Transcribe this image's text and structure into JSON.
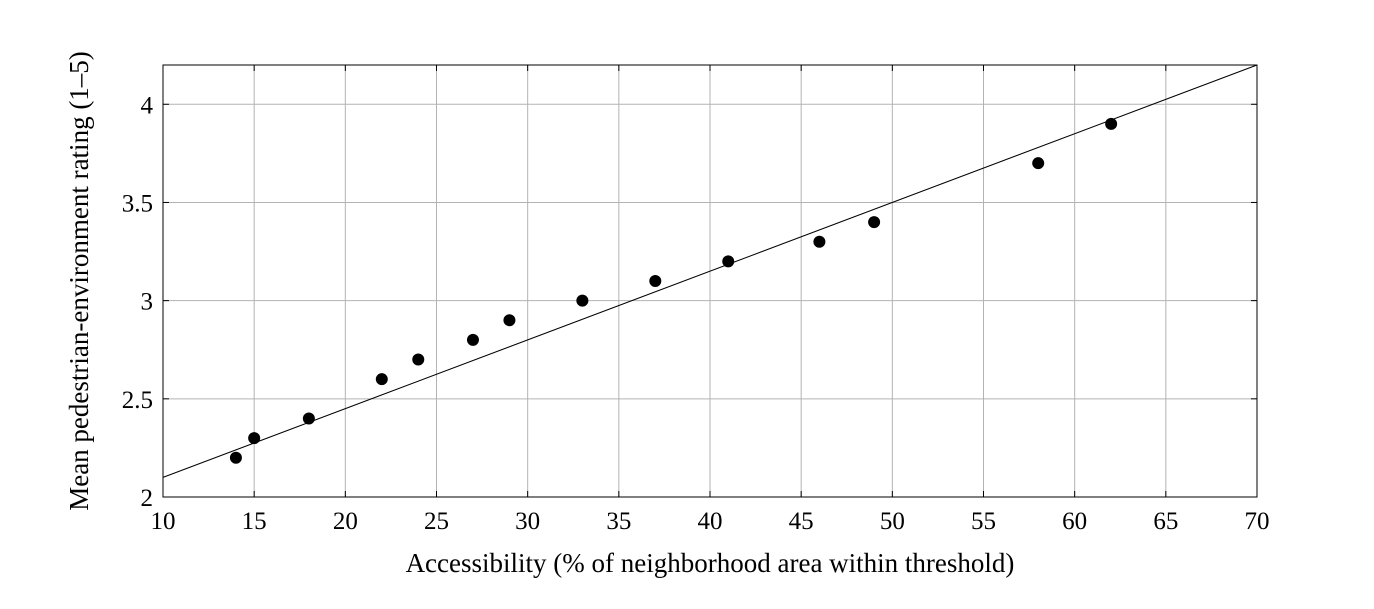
{
  "chart_data": {
    "type": "scatter",
    "title": "",
    "xlabel": "Accessibility (% of neighborhood area within threshold)",
    "ylabel": "Mean pedestrian-environment rating (1–5)",
    "xlim": [
      10,
      70
    ],
    "ylim": [
      2,
      4.2
    ],
    "xticks": [
      10,
      15,
      20,
      25,
      30,
      35,
      40,
      45,
      50,
      55,
      60,
      65,
      70
    ],
    "xtick_labels": [
      "10",
      "15",
      "20",
      "25",
      "30",
      "35",
      "40",
      "45",
      "50",
      "55",
      "60",
      "65",
      "70"
    ],
    "yticks": [
      2,
      2.5,
      3,
      3.5,
      4
    ],
    "ytick_labels": [
      "2",
      "2.5",
      "3",
      "3.5",
      "4"
    ],
    "grid": true,
    "series": [
      {
        "type": "scatter",
        "x": [
          14,
          15,
          18,
          22,
          24,
          27,
          29,
          33,
          37,
          41,
          46,
          49,
          58,
          62
        ],
        "y": [
          2.2,
          2.3,
          2.4,
          2.6,
          2.7,
          2.8,
          2.9,
          3.0,
          3.1,
          3.2,
          3.3,
          3.4,
          3.7,
          3.9
        ],
        "color": "#000000"
      },
      {
        "type": "line",
        "x": [
          10,
          70
        ],
        "y": [
          2.1,
          4.2
        ],
        "color": "#000000"
      }
    ]
  }
}
